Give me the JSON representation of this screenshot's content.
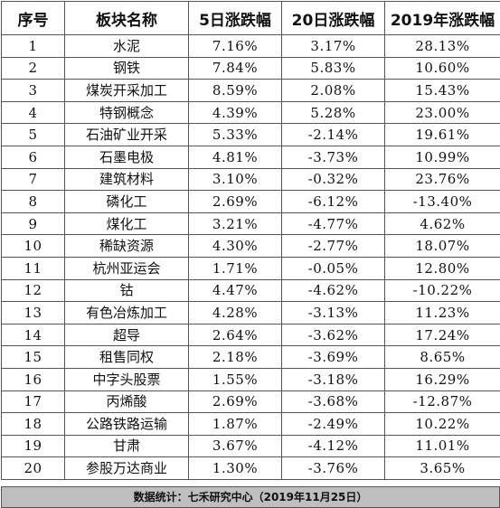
{
  "headers": [
    "序号",
    "板块名称",
    "5日涨跌幅",
    "20日涨跌幅",
    "2019年涨跌幅"
  ],
  "rows": [
    [
      "1",
      "水泥",
      "7.16%",
      "3.17%",
      "28.13%"
    ],
    [
      "2",
      "钢铁",
      "7.84%",
      "5.83%",
      "10.60%"
    ],
    [
      "3",
      "煤炭开采加工",
      "8.59%",
      "2.08%",
      "15.43%"
    ],
    [
      "4",
      "特钢概念",
      "4.39%",
      "5.28%",
      "23.00%"
    ],
    [
      "5",
      "石油矿业开采",
      "5.33%",
      "-2.14%",
      "19.61%"
    ],
    [
      "6",
      "石墨电极",
      "4.81%",
      "-3.73%",
      "10.99%"
    ],
    [
      "7",
      "建筑材料",
      "3.10%",
      "-0.32%",
      "23.76%"
    ],
    [
      "8",
      "磷化工",
      "2.69%",
      "-6.12%",
      "-13.40%"
    ],
    [
      "9",
      "煤化工",
      "3.21%",
      "-4.77%",
      "4.62%"
    ],
    [
      "10",
      "稀缺资源",
      "4.30%",
      "-2.77%",
      "18.07%"
    ],
    [
      "11",
      "杭州亚运会",
      "1.71%",
      "-0.05%",
      "12.80%"
    ],
    [
      "12",
      "钴",
      "4.47%",
      "-4.62%",
      "-10.22%"
    ],
    [
      "13",
      "有色冶炼加工",
      "4.28%",
      "-3.13%",
      "11.23%"
    ],
    [
      "14",
      "超导",
      "2.64%",
      "-3.62%",
      "17.24%"
    ],
    [
      "15",
      "租售同权",
      "2.18%",
      "-3.69%",
      "8.65%"
    ],
    [
      "16",
      "中字头股票",
      "1.55%",
      "-3.18%",
      "16.29%"
    ],
    [
      "17",
      "丙烯酸",
      "2.69%",
      "-3.68%",
      "-12.87%"
    ],
    [
      "18",
      "公路铁路运输",
      "1.87%",
      "-2.49%",
      "10.22%"
    ],
    [
      "19",
      "甘肃",
      "3.67%",
      "-4.12%",
      "11.01%"
    ],
    [
      "20",
      "参股万达商业",
      "1.30%",
      "-3.76%",
      "3.65%"
    ]
  ],
  "footer": "数据统计：七禾研究中心（2019年11月25日）"
}
